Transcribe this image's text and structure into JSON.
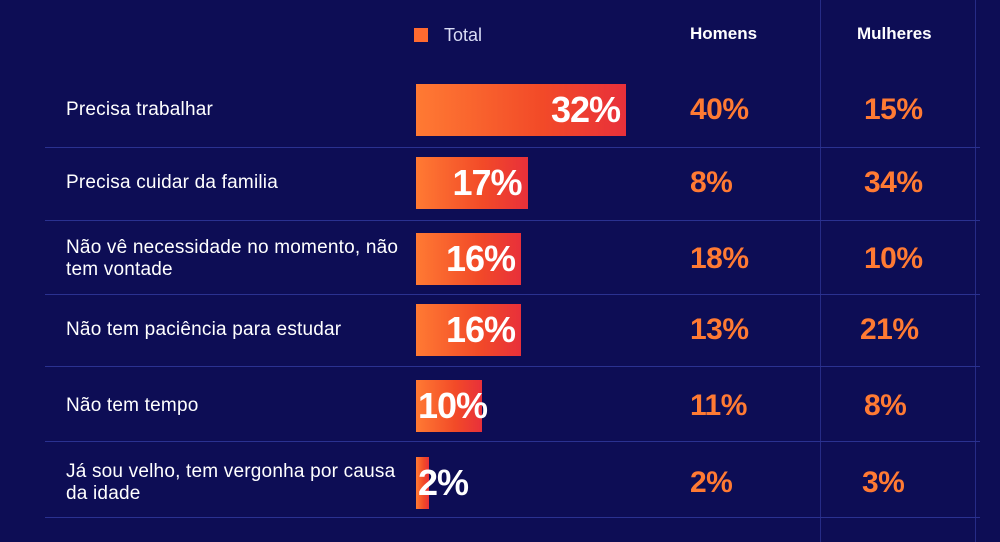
{
  "colors": {
    "background": "#0d0d55",
    "bar": "#ff6a30",
    "accent_text": "#ff7a33",
    "label_text": "#ffffff"
  },
  "legend": {
    "label": "Total"
  },
  "headers": {
    "men": "Homens",
    "women": "Mulheres"
  },
  "chart_data": {
    "type": "bar",
    "orientation": "horizontal",
    "title": "",
    "legend_label": "Total",
    "categories": [
      "Precisa trabalhar",
      "Precisa cuidar da familia",
      "Não vê necessidade no momento, não tem vontade",
      "Não tem paciência para estudar",
      "Não tem tempo",
      "Já sou velho, tem vergonha por causa da idade"
    ],
    "values": [
      32,
      17,
      16,
      16,
      10,
      2
    ],
    "value_labels": [
      "32%",
      "17%",
      "16%",
      "16%",
      "10%",
      "2%"
    ],
    "unit": "%",
    "columns": [
      {
        "name": "Homens",
        "values": [
          "40%",
          "8%",
          "18%",
          "13%",
          "11%",
          "2%"
        ]
      },
      {
        "name": "Mulheres",
        "values": [
          "15%",
          "34%",
          "10%",
          "21%",
          "8%",
          "3%"
        ]
      }
    ]
  }
}
